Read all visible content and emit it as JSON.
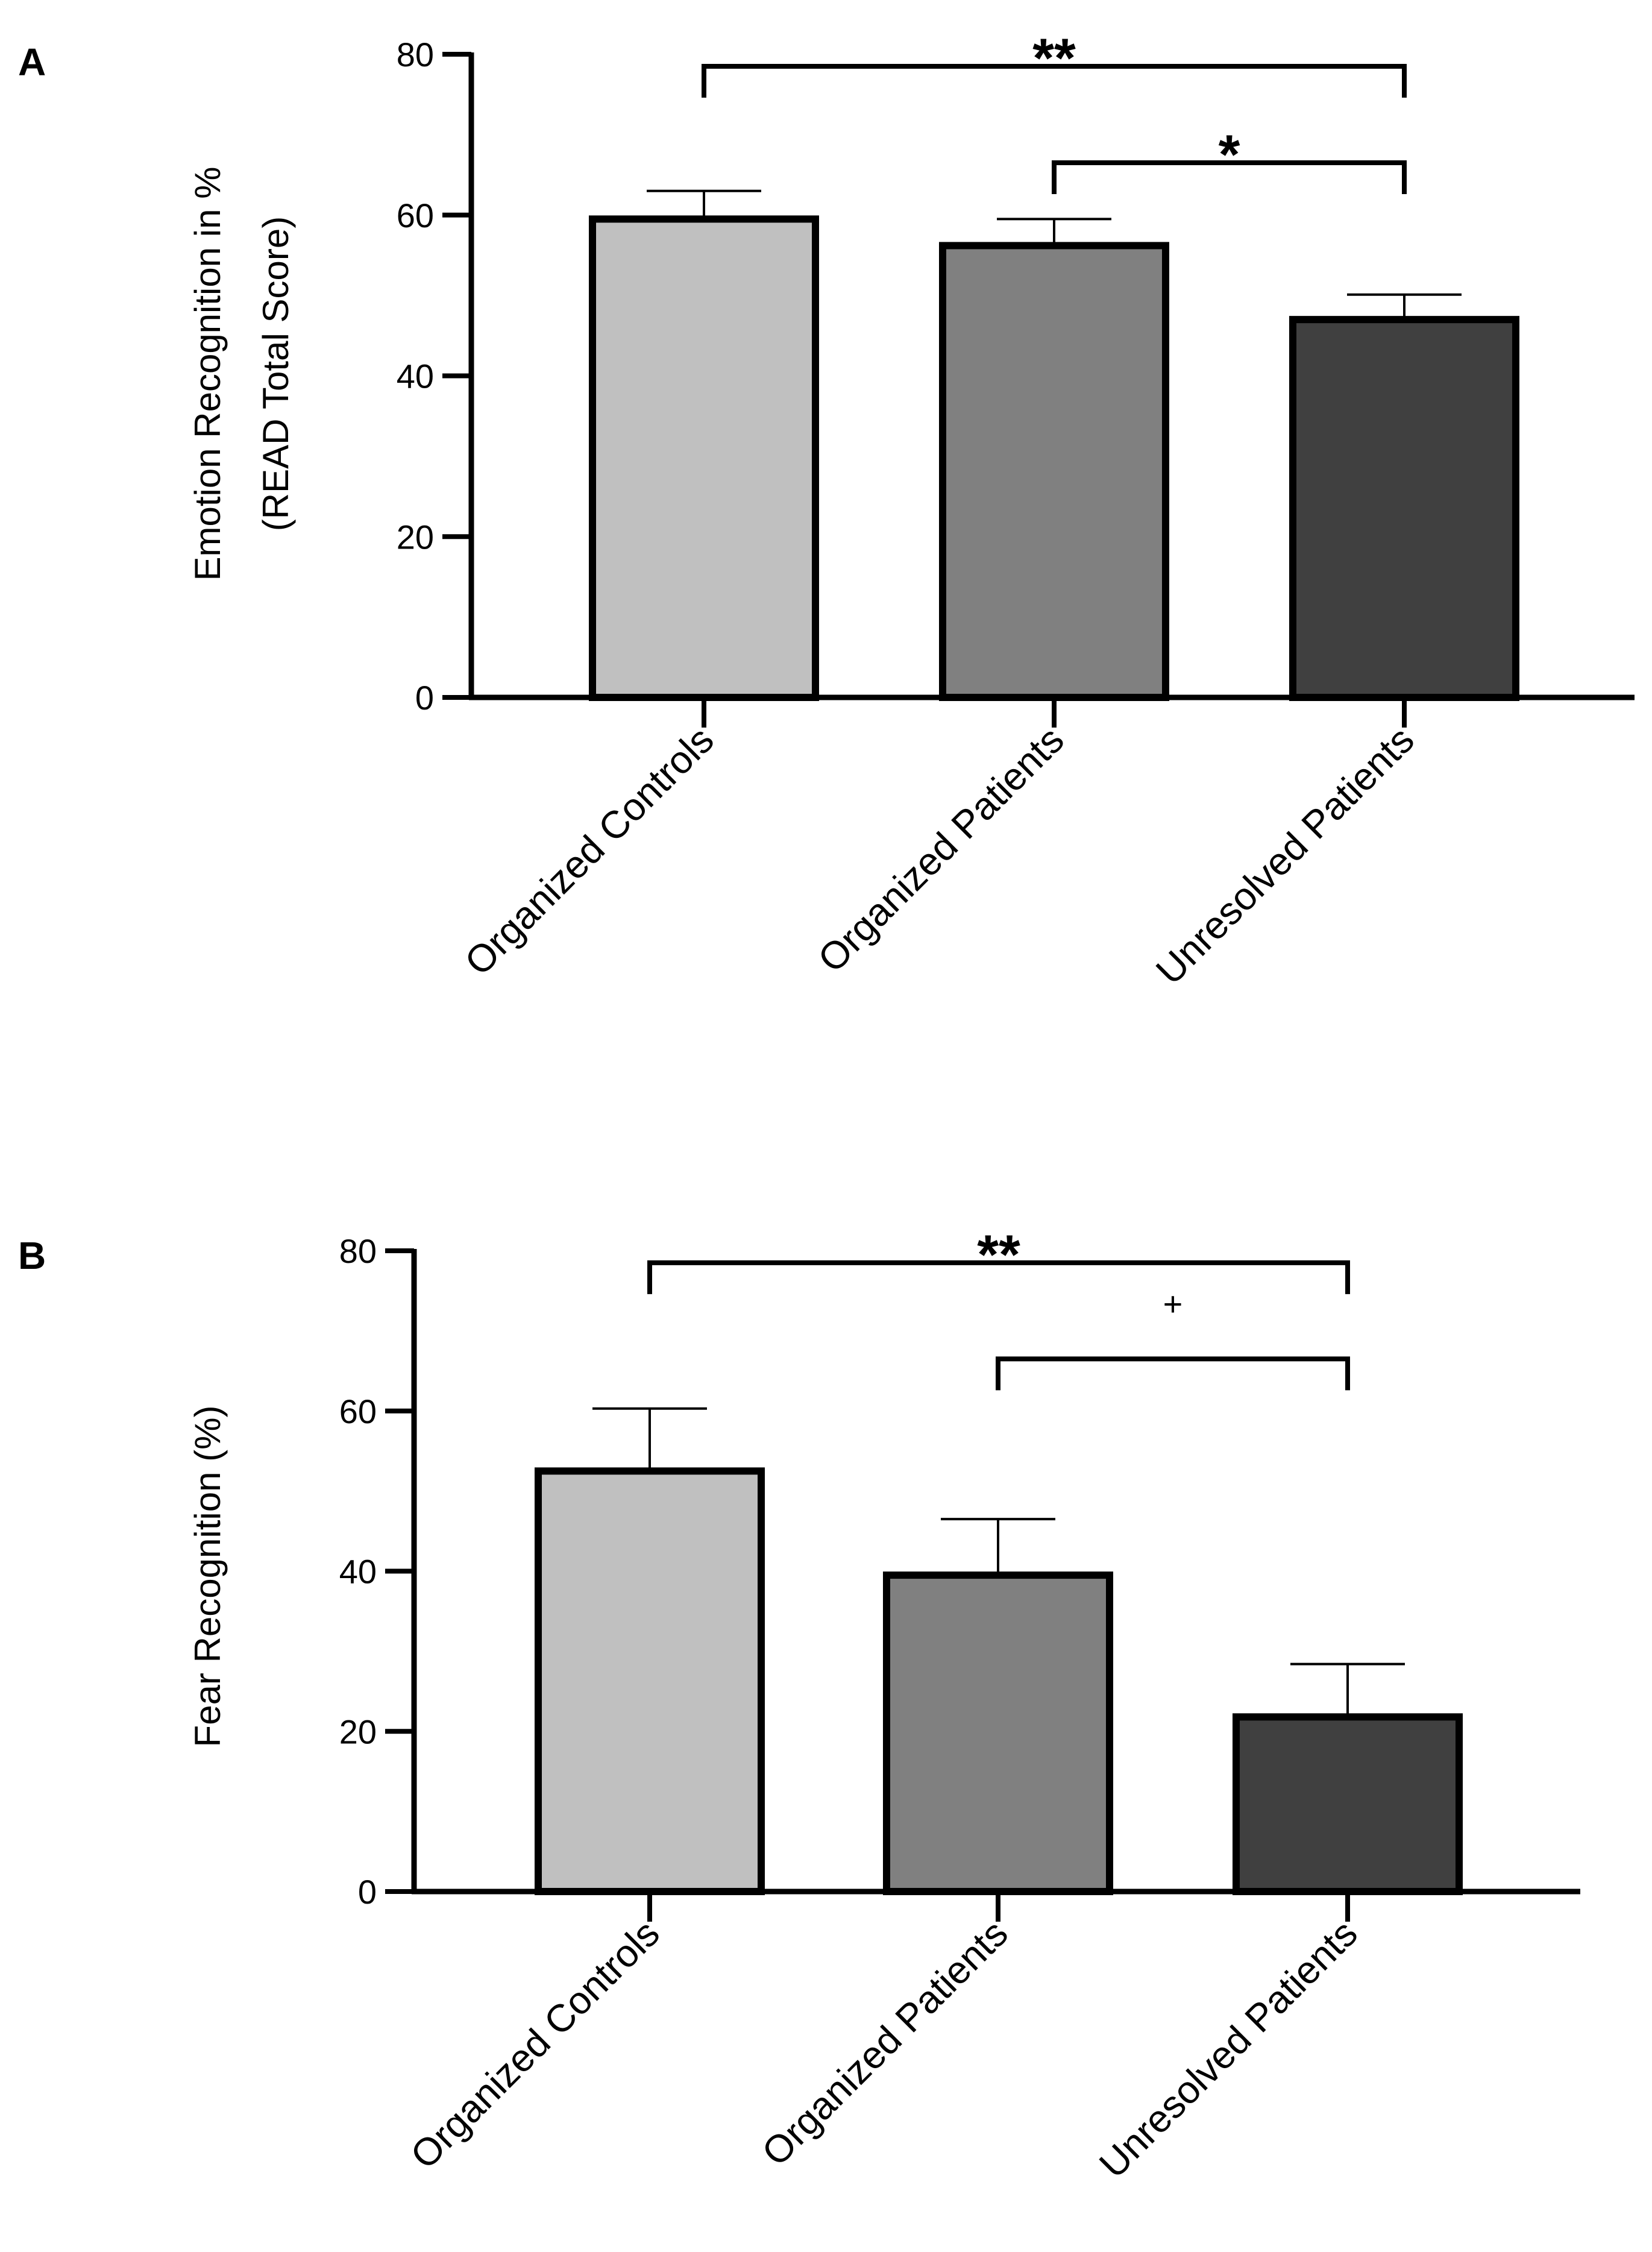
{
  "chart_data": [
    {
      "panel": "A",
      "type": "bar",
      "title": "",
      "xlabel": "",
      "ylabel": [
        "Emotion Recognition in %",
        "(READ Total Score)"
      ],
      "categories": [
        "Organized Controls",
        "Organized Patients",
        "Unresolved Patients"
      ],
      "values": [
        59.5,
        56.2,
        47.0
      ],
      "errors": [
        3.5,
        3.3,
        3.1
      ],
      "colors": [
        "#c0c0c0",
        "#808080",
        "#404040"
      ],
      "ylim": [
        0,
        80
      ],
      "yticks": [
        0,
        20,
        40,
        60,
        80
      ],
      "significance": [
        {
          "from": 0,
          "to": 2,
          "label": "**",
          "level": 78.5
        },
        {
          "from": 1,
          "to": 2,
          "label": "*",
          "level": 66.5
        }
      ]
    },
    {
      "panel": "B",
      "type": "bar",
      "title": "",
      "xlabel": "",
      "ylabel": [
        "Fear Recognition (%)"
      ],
      "categories": [
        "Organized Controls",
        "Organized Patients",
        "Unresolved Patients"
      ],
      "values": [
        52.5,
        39.5,
        21.8
      ],
      "errors": [
        7.8,
        7.0,
        6.6
      ],
      "colors": [
        "#c0c0c0",
        "#808080",
        "#404040"
      ],
      "ylim": [
        0,
        80
      ],
      "yticks": [
        0,
        20,
        40,
        60,
        80
      ],
      "significance": [
        {
          "from": 0,
          "to": 2,
          "label": "**",
          "level": 78.5
        },
        {
          "from": 1,
          "to": 2,
          "label": "+",
          "level": 66.5
        }
      ]
    }
  ]
}
